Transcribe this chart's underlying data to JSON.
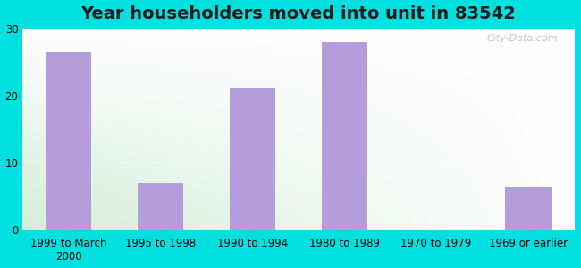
{
  "title": "Year householders moved into unit in 83542",
  "categories": [
    "1999 to March\n2000",
    "1995 to 1998",
    "1990 to 1994",
    "1980 to 1989",
    "1970 to 1979",
    "1969 or earlier"
  ],
  "values": [
    26.5,
    7.0,
    21.0,
    28.0,
    0,
    6.5
  ],
  "bar_color": "#b39ddb",
  "background_outer": "#00e0e0",
  "ylim": [
    0,
    30
  ],
  "yticks": [
    0,
    10,
    20,
    30
  ],
  "title_fontsize": 14,
  "tick_fontsize": 8.5,
  "watermark": "City-Data.com"
}
